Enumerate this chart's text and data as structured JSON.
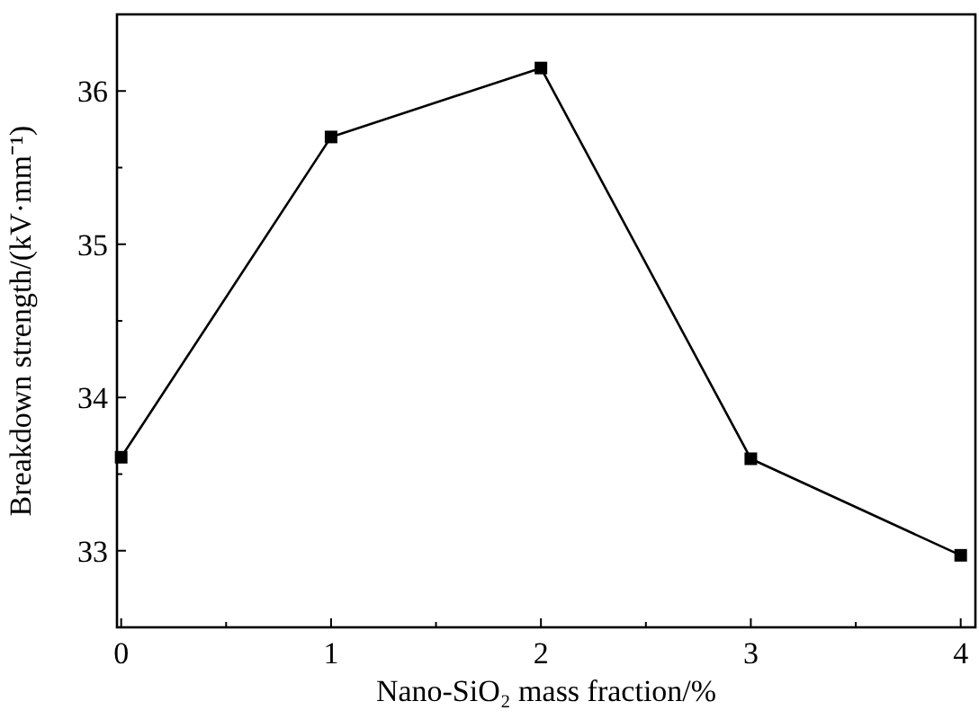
{
  "chart_data": {
    "type": "line",
    "xlabel": "Nano-SiO₂ mass fraction/%",
    "ylabel": "Breakdown strength/(kV·mm⁻¹)",
    "x": [
      0,
      1,
      2,
      3,
      4
    ],
    "series": [
      {
        "color": "#000000",
        "values": [
          33.61,
          35.7,
          36.15,
          33.6,
          32.97
        ]
      }
    ],
    "xlim": [
      -0.02,
      4.07
    ],
    "ylim": [
      32.5,
      36.5
    ],
    "xticks": [
      0,
      {
        "value": 0.5,
        "label": null
      },
      1,
      {
        "value": 1.5,
        "label": null
      },
      2,
      {
        "value": 2.5,
        "label": null
      },
      3,
      {
        "value": 3.5,
        "label": null
      },
      4
    ],
    "yticks": [
      {
        "value": 32.5,
        "label": null
      },
      33,
      {
        "value": 33.5,
        "label": null
      },
      34,
      {
        "value": 34.5,
        "label": null
      },
      35,
      {
        "value": 35.5,
        "label": null
      },
      36
    ],
    "marker": "square",
    "line_style": "solid",
    "grid": false
  }
}
